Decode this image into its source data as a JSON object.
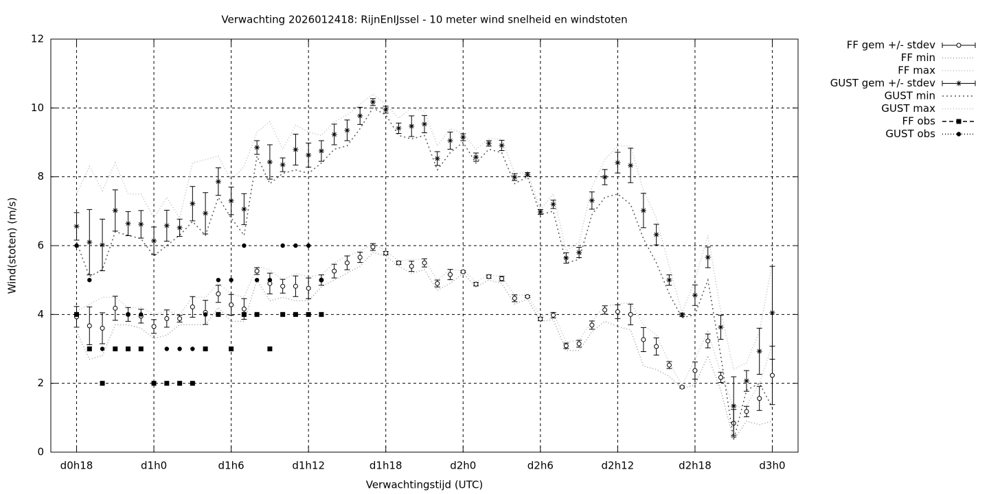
{
  "chart_data": {
    "type": "line",
    "title": "Verwachting 2026012418: RijnEnIJssel - 10 meter wind snelheid en windstoten",
    "xlabel": "Verwachtingstijd (UTC)",
    "ylabel": "Wind(stoten) (m/s)",
    "xlim": [
      16,
      74
    ],
    "ylim": [
      0,
      12
    ],
    "xticks": [
      {
        "value": 18,
        "label": "d0h18"
      },
      {
        "value": 24,
        "label": "d1h0"
      },
      {
        "value": 30,
        "label": "d1h6"
      },
      {
        "value": 36,
        "label": "d1h12"
      },
      {
        "value": 42,
        "label": "d1h18"
      },
      {
        "value": 48,
        "label": "d2h0"
      },
      {
        "value": 54,
        "label": "d2h6"
      },
      {
        "value": 60,
        "label": "d2h12"
      },
      {
        "value": 66,
        "label": "d2h18"
      },
      {
        "value": 72,
        "label": "d3h0"
      }
    ],
    "yticks": [
      0,
      2,
      4,
      6,
      8,
      10,
      12
    ],
    "grid": true,
    "legend": "right",
    "x": [
      18,
      19,
      20,
      21,
      22,
      23,
      24,
      25,
      26,
      27,
      28,
      29,
      30,
      31,
      32,
      33,
      34,
      35,
      36,
      37,
      38,
      39,
      40,
      41,
      42,
      43,
      44,
      45,
      46,
      47,
      48,
      49,
      50,
      51,
      52,
      53,
      54,
      55,
      56,
      57,
      58,
      59,
      60,
      61,
      62,
      63,
      64,
      65,
      66,
      67,
      68,
      69,
      70,
      71,
      72
    ],
    "series": [
      {
        "name": "FF gem +/- stdev",
        "color": "#000000",
        "style": "errorbars",
        "marker": "circle",
        "values": [
          3.93,
          3.67,
          3.6,
          4.18,
          4.0,
          3.95,
          3.65,
          3.88,
          3.88,
          4.22,
          4.06,
          4.6,
          4.28,
          4.16,
          5.26,
          4.9,
          4.82,
          4.82,
          4.76,
          5.0,
          5.26,
          5.5,
          5.66,
          5.96,
          5.78,
          5.5,
          5.4,
          5.5,
          4.9,
          5.16,
          5.24,
          4.88,
          5.1,
          5.04,
          4.47,
          4.52,
          3.87,
          3.98,
          3.09,
          3.15,
          3.69,
          4.13,
          4.08,
          4.0,
          3.27,
          3.07,
          2.53,
          1.89,
          2.37,
          3.23,
          2.17,
          0.84,
          1.18,
          1.56,
          2.23
        ],
        "errors": [
          0.3,
          0.55,
          0.45,
          0.35,
          0.2,
          0.2,
          0.2,
          0.25,
          0.1,
          0.3,
          0.35,
          0.25,
          0.3,
          0.3,
          0.1,
          0.3,
          0.2,
          0.3,
          0.3,
          0.15,
          0.2,
          0.2,
          0.15,
          0.1,
          0.05,
          0.05,
          0.15,
          0.12,
          0.1,
          0.15,
          0.03,
          0.05,
          0.05,
          0.07,
          0.1,
          0.03,
          0.05,
          0.08,
          0.08,
          0.1,
          0.12,
          0.12,
          0.2,
          0.3,
          0.35,
          0.25,
          0.1,
          0.03,
          0.25,
          0.2,
          0.15,
          0.4,
          0.15,
          0.35,
          0.85
        ]
      },
      {
        "name": "FF min",
        "color": "#999999",
        "style": "line",
        "dash": "1,3",
        "values": [
          3.5,
          2.7,
          2.8,
          3.7,
          3.7,
          3.6,
          3.3,
          3.4,
          3.7,
          3.7,
          3.7,
          4.2,
          3.8,
          3.8,
          5.0,
          4.4,
          4.5,
          4.4,
          4.4,
          4.8,
          5.0,
          5.2,
          5.4,
          5.8,
          5.7,
          5.4,
          5.2,
          5.3,
          4.7,
          4.9,
          5.2,
          4.8,
          5.0,
          4.9,
          4.3,
          4.45,
          3.8,
          3.85,
          2.95,
          2.95,
          3.5,
          3.8,
          3.65,
          3.55,
          2.5,
          2.4,
          2.2,
          1.85,
          1.95,
          2.8,
          1.8,
          0.35,
          0.9,
          0.8,
          0.9
        ]
      },
      {
        "name": "FF max",
        "color": "#bbbbbb",
        "style": "line",
        "dash": "1,3",
        "values": [
          4.1,
          4.3,
          4.5,
          4.5,
          4.2,
          4.2,
          4.0,
          4.1,
          4.0,
          4.5,
          4.5,
          4.9,
          4.6,
          4.5,
          5.4,
          5.3,
          5.0,
          5.2,
          5.1,
          5.15,
          5.5,
          5.7,
          5.85,
          6.05,
          5.85,
          5.55,
          5.6,
          5.6,
          5.0,
          5.3,
          5.28,
          4.95,
          5.15,
          5.1,
          4.55,
          4.57,
          3.95,
          4.05,
          3.2,
          3.25,
          3.8,
          4.25,
          4.3,
          4.35,
          3.7,
          3.4,
          2.6,
          1.95,
          2.7,
          3.5,
          2.3,
          1.3,
          1.35,
          2.0,
          3.1
        ]
      },
      {
        "name": "GUST gem +/- stdev",
        "color": "#000000",
        "style": "errorbars",
        "marker": "star",
        "values": [
          6.56,
          6.1,
          6.02,
          7.02,
          6.64,
          6.62,
          6.14,
          6.58,
          6.52,
          7.22,
          6.94,
          7.86,
          7.3,
          7.06,
          8.85,
          8.43,
          8.35,
          8.79,
          8.63,
          8.75,
          9.23,
          9.35,
          9.77,
          10.17,
          9.95,
          9.41,
          9.47,
          9.53,
          8.53,
          9.05,
          9.15,
          8.57,
          8.97,
          8.91,
          7.99,
          8.07,
          6.98,
          7.2,
          5.64,
          5.8,
          7.31,
          7.99,
          8.41,
          8.33,
          7.02,
          6.32,
          5.0,
          3.99,
          4.56,
          5.66,
          3.63,
          1.34,
          2.07,
          2.93,
          4.05
        ],
        "errors": [
          0.4,
          0.95,
          0.75,
          0.6,
          0.35,
          0.4,
          0.4,
          0.45,
          0.25,
          0.5,
          0.6,
          0.4,
          0.4,
          0.45,
          0.2,
          0.5,
          0.2,
          0.45,
          0.35,
          0.3,
          0.3,
          0.3,
          0.25,
          0.1,
          0.1,
          0.15,
          0.3,
          0.25,
          0.2,
          0.25,
          0.1,
          0.12,
          0.08,
          0.15,
          0.1,
          0.05,
          0.07,
          0.12,
          0.15,
          0.15,
          0.25,
          0.22,
          0.3,
          0.5,
          0.5,
          0.3,
          0.15,
          0.05,
          0.3,
          0.3,
          0.35,
          0.85,
          0.3,
          0.67,
          1.35
        ]
      },
      {
        "name": "GUST min",
        "color": "#555555",
        "style": "line",
        "dash": "2,4",
        "values": [
          6.1,
          5.1,
          5.3,
          6.4,
          6.3,
          6.2,
          5.7,
          6.0,
          6.3,
          6.7,
          6.3,
          7.4,
          6.8,
          6.3,
          8.6,
          7.8,
          8.1,
          8.2,
          8.1,
          8.4,
          8.8,
          8.9,
          9.4,
          10.0,
          9.8,
          9.2,
          9.1,
          9.2,
          8.2,
          8.7,
          9.0,
          8.4,
          8.8,
          8.7,
          7.8,
          8.0,
          6.9,
          7.0,
          5.5,
          5.6,
          6.9,
          7.4,
          7.5,
          7.2,
          6.2,
          5.5,
          4.6,
          3.9,
          4.0,
          5.0,
          2.8,
          0.35,
          1.8,
          2.0,
          1.3
        ]
      },
      {
        "name": "GUST max",
        "color": "#bbbbbb",
        "style": "line",
        "dash": "1,3",
        "values": [
          7.5,
          8.3,
          7.6,
          8.4,
          7.5,
          7.5,
          6.8,
          7.4,
          6.8,
          8.4,
          8.5,
          8.6,
          7.9,
          8.3,
          9.3,
          9.6,
          8.8,
          9.5,
          9.3,
          9.2,
          9.6,
          9.8,
          10.1,
          10.4,
          10.1,
          9.7,
          10.0,
          9.9,
          8.9,
          9.4,
          9.25,
          8.8,
          9.1,
          9.1,
          8.1,
          8.12,
          7.05,
          7.5,
          5.85,
          6.1,
          7.7,
          8.5,
          8.9,
          8.9,
          7.6,
          6.8,
          5.4,
          4.05,
          5.0,
          6.3,
          4.1,
          2.4,
          2.6,
          3.5,
          5.5
        ]
      },
      {
        "name": "FF obs",
        "color": "#000000",
        "style": "points",
        "marker": "square",
        "dash": "6,4",
        "values": [
          4,
          3,
          2,
          3,
          3,
          3,
          2,
          2,
          2,
          2,
          3,
          4,
          3,
          4,
          4,
          3,
          4,
          4,
          4,
          4,
          null,
          null,
          null,
          null,
          null,
          null,
          null,
          null,
          null,
          null,
          null,
          null,
          null,
          null,
          null,
          null,
          null,
          null,
          null,
          null,
          null,
          null,
          null,
          null,
          null,
          null,
          null,
          null,
          null,
          null,
          null,
          null,
          null,
          null,
          null
        ]
      },
      {
        "name": "GUST obs",
        "color": "#000000",
        "style": "points",
        "marker": "dot",
        "dash": "1,3",
        "values": [
          6,
          5,
          3,
          null,
          4,
          4,
          null,
          3,
          3,
          3,
          4,
          5,
          5,
          6,
          5,
          5,
          6,
          6,
          6,
          5,
          null,
          null,
          null,
          null,
          null,
          null,
          null,
          null,
          null,
          null,
          null,
          null,
          null,
          null,
          null,
          null,
          null,
          null,
          null,
          null,
          null,
          null,
          null,
          null,
          null,
          null,
          null,
          null,
          null,
          null,
          null,
          null,
          null,
          null,
          null
        ]
      }
    ]
  }
}
